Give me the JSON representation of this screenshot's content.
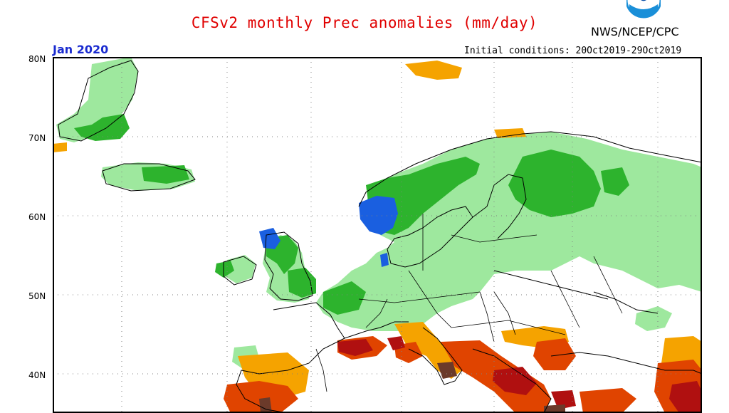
{
  "title": "CFSv2 monthly Prec anomalies (mm/day)",
  "organization": "NWS/NCEP/CPC",
  "logo_icon": "noaa-logo-icon",
  "target_month": "Jan 2020",
  "initial_conditions": "Initial conditions: 20Oct2019-29Oct2019",
  "latitude_labels": [
    "80N",
    "70N",
    "60N",
    "50N",
    "40N"
  ],
  "colors": {
    "wet_light": "#9ee89e",
    "wet_medium": "#2db32d",
    "wet_strong": "#1a5fe0",
    "dry_light": "#f5a300",
    "dry_medium": "#e04400",
    "dry_strong": "#b01010",
    "dry_extreme": "#6b3a2a",
    "title_color": "#e00000",
    "month_color": "#1a2bd0"
  }
}
